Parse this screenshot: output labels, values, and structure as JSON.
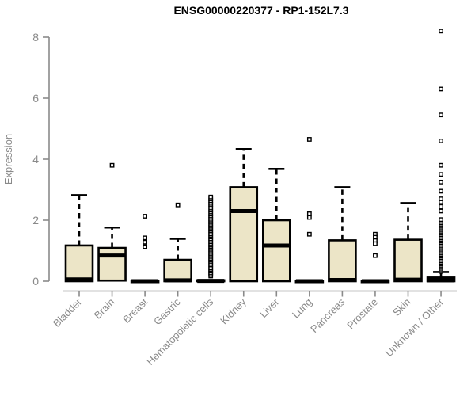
{
  "chart_data": {
    "type": "boxplot",
    "title": "ENSG00000220377 - RP1-152L7.3",
    "ylabel": "Expression",
    "xlabel": "",
    "yticks": [
      0,
      2,
      4,
      6,
      8
    ],
    "ylim": [
      0,
      8.4
    ],
    "grid": false,
    "legend": "none",
    "colors": {
      "box_fill": "#ece5c7",
      "box_stroke": "#000000",
      "median": "#000000",
      "whisker": "#000000",
      "outlier_stroke": "#000000",
      "outlier_fill": "#ffffff",
      "axis": "#8a8a8a",
      "title": "#000000",
      "background": "#ffffff"
    },
    "categories": [
      "Bladder",
      "Brain",
      "Breast",
      "Gastric",
      "Hematopoietic cells",
      "Kidney",
      "Liver",
      "Lung",
      "Pancreas",
      "Prostate",
      "Skin",
      "Unknown / Other"
    ],
    "series": [
      {
        "category": "Bladder",
        "min": 0,
        "q1": 0,
        "median": 0.06,
        "q3": 1.17,
        "max": 2.82,
        "outliers": []
      },
      {
        "category": "Brain",
        "min": 0.02,
        "q1": 0.02,
        "median": 0.84,
        "q3": 1.09,
        "max": 1.76,
        "outliers": [
          3.8
        ]
      },
      {
        "category": "Breast",
        "min": 0,
        "q1": 0,
        "median": 0,
        "q3": 0,
        "max": 0,
        "outliers": [
          2.13,
          1.42,
          1.28,
          1.13
        ]
      },
      {
        "category": "Gastric",
        "min": 0,
        "q1": 0,
        "median": 0.03,
        "q3": 0.7,
        "max": 1.39,
        "outliers": [
          2.5
        ]
      },
      {
        "category": "Hematopoietic cells",
        "min": 0,
        "q1": 0,
        "median": 0.01,
        "q3": 0.03,
        "max": 0.03,
        "outliers": [
          0.17,
          0.22,
          0.27,
          0.33,
          0.38,
          0.43,
          0.49,
          0.54,
          0.59,
          0.65,
          0.7,
          0.75,
          0.81,
          0.86,
          0.91,
          0.97,
          1.02,
          1.07,
          1.13,
          1.18,
          1.23,
          1.29,
          1.34,
          1.39,
          1.45,
          1.5,
          1.55,
          1.61,
          1.66,
          1.71,
          1.77,
          1.82,
          1.87,
          1.93,
          1.98,
          2.03,
          2.09,
          2.14,
          2.2,
          2.27,
          2.33,
          2.4,
          2.46,
          2.52,
          2.58,
          2.64,
          2.7,
          2.76
        ]
      },
      {
        "category": "Kidney",
        "min": 0,
        "q1": 0,
        "median": 2.3,
        "q3": 3.08,
        "max": 4.33,
        "outliers": []
      },
      {
        "category": "Liver",
        "min": 0,
        "q1": 0,
        "median": 1.17,
        "q3": 2.0,
        "max": 3.68,
        "outliers": []
      },
      {
        "category": "Lung",
        "min": 0,
        "q1": 0,
        "median": 0,
        "q3": 0,
        "max": 0,
        "outliers": [
          4.65,
          2.21,
          2.09,
          1.54
        ]
      },
      {
        "category": "Pancreas",
        "min": 0,
        "q1": 0,
        "median": 0.04,
        "q3": 1.34,
        "max": 3.08,
        "outliers": []
      },
      {
        "category": "Prostate",
        "min": 0,
        "q1": 0,
        "median": 0,
        "q3": 0,
        "max": 0,
        "outliers": [
          1.54,
          1.44,
          1.33,
          1.23,
          0.84
        ]
      },
      {
        "category": "Skin",
        "min": 0,
        "q1": 0,
        "median": 0.05,
        "q3": 1.36,
        "max": 2.56,
        "outliers": []
      },
      {
        "category": "Unknown / Other",
        "min": 0,
        "q1": 0,
        "median": 0.03,
        "q3": 0.12,
        "max": 0.3,
        "outliers": [
          0.32,
          0.37,
          0.42,
          0.47,
          0.52,
          0.57,
          0.62,
          0.67,
          0.72,
          0.77,
          0.82,
          0.87,
          0.92,
          0.97,
          1.02,
          1.07,
          1.12,
          1.17,
          1.22,
          1.27,
          1.32,
          1.37,
          1.42,
          1.47,
          1.52,
          1.57,
          1.62,
          1.67,
          1.72,
          1.77,
          1.82,
          1.87,
          1.92,
          1.97,
          2.02,
          2.3,
          2.45,
          2.6,
          2.7,
          2.95,
          3.25,
          3.5,
          3.8,
          4.6,
          5.45,
          6.3,
          8.2
        ]
      }
    ]
  }
}
